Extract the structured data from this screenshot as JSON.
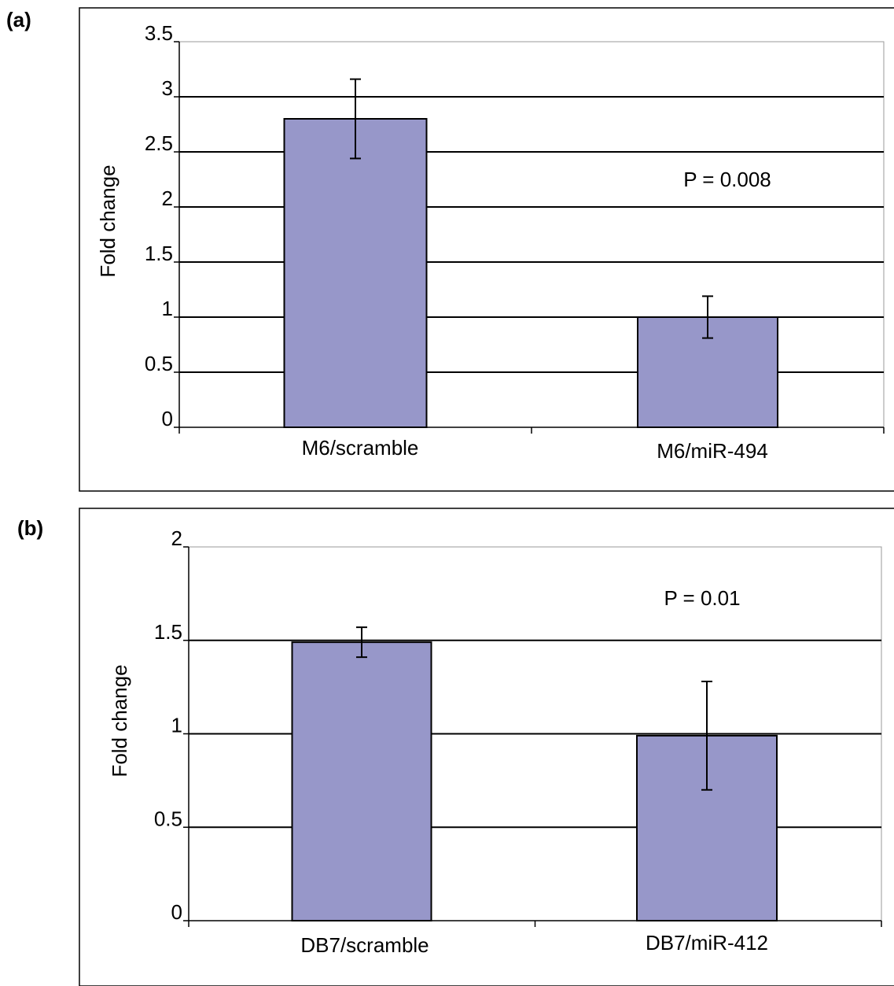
{
  "chart_data": [
    {
      "panel": "(a)",
      "type": "bar",
      "categories": [
        "M6/scramble",
        "M6/miR-494"
      ],
      "values": [
        2.8,
        1.0
      ],
      "errors": [
        0.36,
        0.19
      ],
      "ylabel": "Fold change",
      "ylim": [
        0,
        3.5
      ],
      "yticks": [
        0,
        0.5,
        1,
        1.5,
        2,
        2.5,
        3,
        3.5
      ],
      "ytick_labels": [
        "0",
        "0.5",
        "1",
        "1.5",
        "2",
        "2.5",
        "3",
        "3.5"
      ],
      "annotation": "P = 0.008",
      "grid": true,
      "bar_color": "#9797c9"
    },
    {
      "panel": "(b)",
      "type": "bar",
      "categories": [
        "DB7/scramble",
        "DB7/miR-412"
      ],
      "values": [
        1.49,
        0.99
      ],
      "errors": [
        0.08,
        0.29
      ],
      "ylabel": "Fold change",
      "ylim": [
        0,
        2
      ],
      "yticks": [
        0,
        0.5,
        1,
        1.5,
        2
      ],
      "ytick_labels": [
        "0",
        "0.5",
        "1",
        "1.5",
        "2"
      ],
      "annotation": "P = 0.01",
      "grid": true,
      "bar_color": "#9797c9"
    }
  ]
}
